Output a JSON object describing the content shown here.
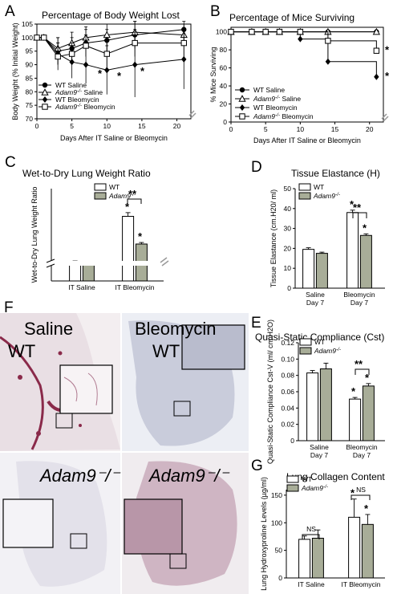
{
  "panel_letters": {
    "a": "A",
    "b": "B",
    "c": "C",
    "d": "D",
    "e": "E",
    "f": "F",
    "g": "G"
  },
  "micrographs": {
    "saline_wt": {
      "line1": "Saline",
      "line2": "WT"
    },
    "bleo_wt": {
      "line1": "Bleomycin",
      "line2": "WT"
    },
    "saline_adam9": {
      "label": "Adam9⁻/⁻"
    },
    "bleo_adam9": {
      "label": "Adam9⁻/⁻"
    }
  },
  "chart_data": [
    {
      "id": "A",
      "type": "line",
      "title": "Percentage of Body Weight Lost",
      "xlabel": "Days After IT Saline or Bleomycin",
      "ylabel": "Body Weight (% Initial Weight)",
      "xlim": [
        0,
        22
      ],
      "ylim": [
        70,
        105
      ],
      "x": [
        0,
        1,
        3,
        5,
        7,
        10,
        14,
        21
      ],
      "series": [
        {
          "name": "WT Saline",
          "marker": "filled-circle",
          "y": [
            100,
            100,
            95,
            96,
            98,
            99,
            101,
            103
          ]
        },
        {
          "name": "Adam9⁻/⁻ Saline",
          "marker": "open-triangle",
          "y": [
            100,
            100,
            96,
            98,
            100,
            101,
            102,
            101
          ]
        },
        {
          "name": "WT Bleomycin",
          "marker": "filled-diamond",
          "y": [
            100,
            100,
            94,
            91,
            90,
            88,
            90,
            92
          ]
        },
        {
          "name": "Adam9⁻/⁻ Bleomycin",
          "marker": "open-square",
          "y": [
            100,
            100,
            93,
            94,
            97,
            94,
            98,
            98
          ]
        }
      ],
      "star_label": "*",
      "stars_at_x": [
        7,
        10,
        14
      ],
      "grid": false,
      "legend": "bottom-left"
    },
    {
      "id": "B",
      "type": "line",
      "title": "Percentage of Mice Surviving",
      "xlabel": "Days After IT Saline or Bleomycin",
      "ylabel": "% Mice Surviving",
      "xlim": [
        0,
        22
      ],
      "ylim": [
        0,
        105
      ],
      "x": [
        0,
        3,
        5,
        7,
        10,
        14,
        21
      ],
      "series": [
        {
          "name": "WT Saline",
          "marker": "filled-circle",
          "y": [
            100,
            100,
            100,
            100,
            100,
            100,
            100
          ]
        },
        {
          "name": "Adam9⁻/⁻ Saline",
          "marker": "open-triangle",
          "y": [
            100,
            100,
            100,
            100,
            100,
            100,
            100
          ]
        },
        {
          "name": "WT Bleomycin",
          "marker": "filled-diamond",
          "y": [
            100,
            100,
            100,
            100,
            92,
            67,
            50
          ]
        },
        {
          "name": "Adam9⁻/⁻ Bleomycin",
          "marker": "open-square",
          "y": [
            100,
            100,
            100,
            100,
            100,
            90,
            79
          ]
        }
      ],
      "star_label": "*",
      "grid": false,
      "legend": "bottom-left"
    },
    {
      "id": "C",
      "type": "bar",
      "title": "Wet-to-Dry Lung Weight Ratio",
      "ylabel": "Wet-to-Dry Lung Weight Ratio",
      "categories": [
        "IT Saline",
        "IT Bleomycin"
      ],
      "series": [
        {
          "name": "WT",
          "values": [
            4.6,
            6.1
          ],
          "err": [
            0.05,
            0.12
          ]
        },
        {
          "name": "Adam9⁻/⁻",
          "values": [
            4.55,
            5.2
          ],
          "err": [
            0.04,
            0.05
          ]
        }
      ],
      "ylim": [
        4,
        7
      ],
      "sig_label": "**",
      "star_label": "*",
      "legend": "top-right"
    },
    {
      "id": "D",
      "type": "bar",
      "title": "Tissue Elastance (H)",
      "ylabel": "Tissue Elastance (cm.H20/ ml)",
      "categories": [
        [
          "Saline",
          "Day 7"
        ],
        [
          "Bleomycin",
          "Day 7"
        ]
      ],
      "yticks": [
        0,
        10,
        20,
        30,
        40,
        50
      ],
      "series": [
        {
          "name": "WT",
          "values": [
            19.5,
            38
          ],
          "err": [
            0.8,
            1.2
          ]
        },
        {
          "name": "Adam9⁻/⁻",
          "values": [
            17.5,
            26.5
          ],
          "err": [
            0.6,
            0.8
          ]
        }
      ],
      "ylim": [
        0,
        50
      ],
      "sig_label": "**",
      "star_label": "*",
      "legend": "top-left"
    },
    {
      "id": "E",
      "type": "bar",
      "title": "Quasi-Static Compliance (Cst)",
      "ylabel": "Quasi-Static Compliance Cst-V (ml/ cm H2O)",
      "categories": [
        [
          "Saline",
          "Day 7"
        ],
        [
          "Bleomycin",
          "Day 7"
        ]
      ],
      "yticks": [
        "0",
        "0.02",
        "0.04",
        "0.06",
        "0.08",
        "0.10",
        "0.12"
      ],
      "series": [
        {
          "name": "WT",
          "values": [
            0.083,
            0.051
          ],
          "err": [
            0.003,
            0.002
          ]
        },
        {
          "name": "Adam9⁻/⁻",
          "values": [
            0.088,
            0.067
          ],
          "err": [
            0.007,
            0.003
          ]
        }
      ],
      "ylim": [
        0,
        0.12
      ],
      "sig_label": "**",
      "star_label": "*",
      "legend": "top-left"
    },
    {
      "id": "G",
      "type": "bar",
      "title": "Lung Collagen Content",
      "ylabel": "Lung Hydroxyproline Levels (µg/ml)",
      "categories": [
        "IT Saline",
        "IT Bleomycin"
      ],
      "yticks": [
        0,
        50,
        100,
        150
      ],
      "series": [
        {
          "name": "WT",
          "values": [
            70,
            110
          ],
          "err": [
            6,
            33
          ]
        },
        {
          "name": "Adam9⁻/⁻",
          "values": [
            72,
            97
          ],
          "err": [
            15,
            18
          ]
        }
      ],
      "ylim": [
        0,
        160
      ],
      "ns_label": "NS",
      "star_label": "*",
      "legend": "top-left"
    }
  ],
  "colors": {
    "wt": "#ffffff",
    "adam9": "#a8ad98",
    "line": "#000000",
    "break": "#999999"
  }
}
